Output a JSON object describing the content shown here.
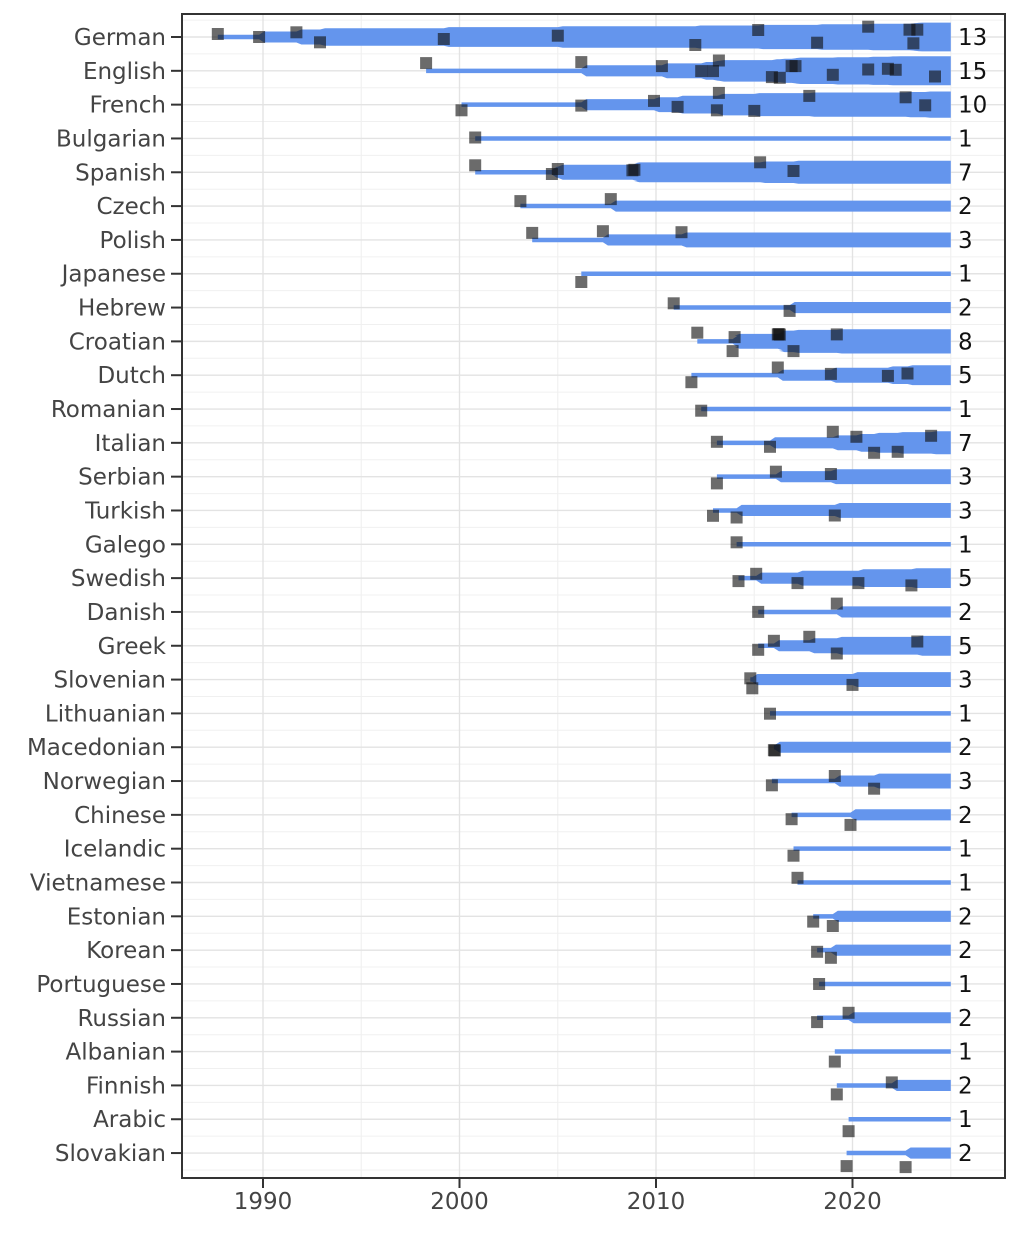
{
  "chart_data": {
    "type": "area",
    "variant": "timeline-stream-with-event-markers",
    "description": "Horizontal timeline per language: stream starts at first event year, widens stepwise at each event (dark square markers, vertically jittered), runs to 2025; total event count labeled at right.",
    "x_axis": {
      "tick_labels": [
        "1990",
        "2000",
        "2010",
        "2020"
      ],
      "major_ticks": [
        1990,
        2000,
        2010,
        2020
      ],
      "minor_gridlines": [
        1995,
        2005,
        2015,
        2025
      ],
      "range": [
        1985.9,
        2027.8
      ],
      "bar_end_year": 2025,
      "grid": true
    },
    "y_axis": {
      "categories": [
        "German",
        "English",
        "French",
        "Bulgarian",
        "Spanish",
        "Czech",
        "Polish",
        "Japanese",
        "Hebrew",
        "Croatian",
        "Dutch",
        "Romanian",
        "Italian",
        "Serbian",
        "Turkish",
        "Galego",
        "Swedish",
        "Danish",
        "Greek",
        "Slovenian",
        "Lithuanian",
        "Macedonian",
        "Norwegian",
        "Chinese",
        "Icelandic",
        "Vietnamese",
        "Estonian",
        "Korean",
        "Portuguese",
        "Russian",
        "Albanian",
        "Finnish",
        "Arabic",
        "Slovakian"
      ]
    },
    "counts": [
      13,
      15,
      10,
      1,
      7,
      2,
      3,
      1,
      2,
      8,
      5,
      1,
      7,
      3,
      3,
      1,
      5,
      2,
      5,
      3,
      1,
      2,
      3,
      2,
      1,
      1,
      2,
      2,
      1,
      2,
      1,
      2,
      1,
      2
    ],
    "legend": "none",
    "series": [
      {
        "language": "German",
        "count": 13,
        "events": [
          {
            "year": 1987.7,
            "dy": -3
          },
          {
            "year": 1989.8,
            "dy": 0
          },
          {
            "year": 1991.7,
            "dy": -4.7
          },
          {
            "year": 1992.9,
            "dy": 5.3
          },
          {
            "year": 1999.2,
            "dy": 2
          },
          {
            "year": 2005.0,
            "dy": -1.3
          },
          {
            "year": 2012.0,
            "dy": 8
          },
          {
            "year": 2015.2,
            "dy": -7
          },
          {
            "year": 2018.2,
            "dy": 5.7
          },
          {
            "year": 2020.8,
            "dy": -10.3
          },
          {
            "year": 2022.9,
            "dy": -7.3
          },
          {
            "year": 2023.1,
            "dy": 6.3
          },
          {
            "year": 2023.3,
            "dy": -7.3
          }
        ]
      },
      {
        "language": "English",
        "count": 15,
        "events": [
          {
            "year": 1998.3,
            "dy": -7.7
          },
          {
            "year": 2006.2,
            "dy": -8.7
          },
          {
            "year": 2010.3,
            "dy": -4.7
          },
          {
            "year": 2012.3,
            "dy": 0.3
          },
          {
            "year": 2012.9,
            "dy": 0.3
          },
          {
            "year": 2013.2,
            "dy": -10.3
          },
          {
            "year": 2015.9,
            "dy": 6.3
          },
          {
            "year": 2016.3,
            "dy": 7
          },
          {
            "year": 2016.9,
            "dy": -4.7
          },
          {
            "year": 2017.1,
            "dy": -4.7
          },
          {
            "year": 2019.0,
            "dy": 4
          },
          {
            "year": 2020.8,
            "dy": -1.3
          },
          {
            "year": 2021.8,
            "dy": -2
          },
          {
            "year": 2022.2,
            "dy": -1
          },
          {
            "year": 2024.2,
            "dy": 5.7
          }
        ]
      },
      {
        "language": "French",
        "count": 10,
        "events": [
          {
            "year": 2000.1,
            "dy": 5.7
          },
          {
            "year": 2006.2,
            "dy": 1
          },
          {
            "year": 2009.9,
            "dy": -3.7
          },
          {
            "year": 2011.1,
            "dy": 2.3
          },
          {
            "year": 2013.1,
            "dy": 5.7
          },
          {
            "year": 2013.2,
            "dy": -11.7
          },
          {
            "year": 2015.0,
            "dy": 6.3
          },
          {
            "year": 2017.8,
            "dy": -8.7
          },
          {
            "year": 2022.7,
            "dy": -7.3
          },
          {
            "year": 2023.7,
            "dy": 0.7
          }
        ]
      },
      {
        "language": "Bulgarian",
        "count": 1,
        "events": [
          {
            "year": 2000.8,
            "dy": -1
          }
        ]
      },
      {
        "language": "Spanish",
        "count": 7,
        "events": [
          {
            "year": 2000.8,
            "dy": -7
          },
          {
            "year": 2004.7,
            "dy": 1.7
          },
          {
            "year": 2005.0,
            "dy": -3.3
          },
          {
            "year": 2008.8,
            "dy": -2
          },
          {
            "year": 2008.9,
            "dy": -2.5
          },
          {
            "year": 2015.3,
            "dy": -10
          },
          {
            "year": 2017.0,
            "dy": -1.3
          }
        ]
      },
      {
        "language": "Czech",
        "count": 2,
        "events": [
          {
            "year": 2003.1,
            "dy": -5
          },
          {
            "year": 2007.7,
            "dy": -7
          }
        ]
      },
      {
        "language": "Polish",
        "count": 3,
        "events": [
          {
            "year": 2003.7,
            "dy": -7
          },
          {
            "year": 2007.3,
            "dy": -8.7
          },
          {
            "year": 2011.3,
            "dy": -7.7
          }
        ]
      },
      {
        "language": "Japanese",
        "count": 1,
        "events": [
          {
            "year": 2006.2,
            "dy": 8.3
          }
        ]
      },
      {
        "language": "Hebrew",
        "count": 2,
        "events": [
          {
            "year": 2010.9,
            "dy": -4.3
          },
          {
            "year": 2016.8,
            "dy": 3.3
          }
        ]
      },
      {
        "language": "Croatian",
        "count": 8,
        "events": [
          {
            "year": 2012.1,
            "dy": -8.7
          },
          {
            "year": 2013.9,
            "dy": 9.7
          },
          {
            "year": 2014.0,
            "dy": -4.3
          },
          {
            "year": 2016.2,
            "dy": -7
          },
          {
            "year": 2016.25,
            "dy": -7.3
          },
          {
            "year": 2016.3,
            "dy": -6.8
          },
          {
            "year": 2017.0,
            "dy": 9.7
          },
          {
            "year": 2019.2,
            "dy": -7
          }
        ]
      },
      {
        "language": "Dutch",
        "count": 5,
        "events": [
          {
            "year": 2011.8,
            "dy": 7
          },
          {
            "year": 2016.2,
            "dy": -7.7
          },
          {
            "year": 2018.9,
            "dy": -1.3
          },
          {
            "year": 2021.8,
            "dy": 0.7
          },
          {
            "year": 2022.8,
            "dy": -1.7
          }
        ]
      },
      {
        "language": "Romanian",
        "count": 1,
        "events": [
          {
            "year": 2012.3,
            "dy": 1.7
          }
        ]
      },
      {
        "language": "Italian",
        "count": 7,
        "events": [
          {
            "year": 2013.1,
            "dy": -1
          },
          {
            "year": 2015.8,
            "dy": 4
          },
          {
            "year": 2019.0,
            "dy": -11
          },
          {
            "year": 2020.2,
            "dy": -6
          },
          {
            "year": 2021.1,
            "dy": 10
          },
          {
            "year": 2022.3,
            "dy": 9
          },
          {
            "year": 2024.0,
            "dy": -7
          }
        ]
      },
      {
        "language": "Serbian",
        "count": 3,
        "events": [
          {
            "year": 2013.1,
            "dy": 6.7
          },
          {
            "year": 2016.1,
            "dy": -5
          },
          {
            "year": 2018.9,
            "dy": -2.7
          }
        ]
      },
      {
        "language": "Turkish",
        "count": 3,
        "events": [
          {
            "year": 2012.9,
            "dy": 5.3
          },
          {
            "year": 2014.1,
            "dy": 7
          },
          {
            "year": 2019.1,
            "dy": 5
          }
        ]
      },
      {
        "language": "Galego",
        "count": 1,
        "events": [
          {
            "year": 2014.1,
            "dy": -2
          }
        ]
      },
      {
        "language": "Swedish",
        "count": 5,
        "events": [
          {
            "year": 2014.2,
            "dy": 3
          },
          {
            "year": 2015.1,
            "dy": -4.3
          },
          {
            "year": 2017.2,
            "dy": 5
          },
          {
            "year": 2020.3,
            "dy": 5
          },
          {
            "year": 2023.0,
            "dy": 7.3
          }
        ]
      },
      {
        "language": "Danish",
        "count": 2,
        "events": [
          {
            "year": 2015.2,
            "dy": 0
          },
          {
            "year": 2019.2,
            "dy": -8.3
          }
        ]
      },
      {
        "language": "Greek",
        "count": 5,
        "events": [
          {
            "year": 2015.2,
            "dy": 4
          },
          {
            "year": 2016.0,
            "dy": -5
          },
          {
            "year": 2017.8,
            "dy": -9
          },
          {
            "year": 2019.2,
            "dy": 7.7
          },
          {
            "year": 2023.3,
            "dy": -4.3
          }
        ]
      },
      {
        "language": "Slovenian",
        "count": 3,
        "events": [
          {
            "year": 2014.8,
            "dy": -1.3
          },
          {
            "year": 2014.9,
            "dy": 8.7
          },
          {
            "year": 2020.0,
            "dy": 5.3
          }
        ]
      },
      {
        "language": "Lithuanian",
        "count": 1,
        "events": [
          {
            "year": 2015.8,
            "dy": 0.3
          }
        ]
      },
      {
        "language": "Macedonian",
        "count": 2,
        "events": [
          {
            "year": 2016.0,
            "dy": 3
          },
          {
            "year": 2016.05,
            "dy": 3.2
          }
        ]
      },
      {
        "language": "Norwegian",
        "count": 3,
        "events": [
          {
            "year": 2015.9,
            "dy": 4.3
          },
          {
            "year": 2019.1,
            "dy": -5
          },
          {
            "year": 2021.1,
            "dy": 7.7
          }
        ]
      },
      {
        "language": "Chinese",
        "count": 2,
        "events": [
          {
            "year": 2016.9,
            "dy": 4.3
          },
          {
            "year": 2019.9,
            "dy": 10
          }
        ]
      },
      {
        "language": "Icelandic",
        "count": 1,
        "events": [
          {
            "year": 2017.0,
            "dy": 7
          }
        ]
      },
      {
        "language": "Vietnamese",
        "count": 1,
        "events": [
          {
            "year": 2017.2,
            "dy": -4.7
          }
        ]
      },
      {
        "language": "Estonian",
        "count": 2,
        "events": [
          {
            "year": 2018.0,
            "dy": 5.3
          },
          {
            "year": 2019.0,
            "dy": 9.7
          }
        ]
      },
      {
        "language": "Korean",
        "count": 2,
        "events": [
          {
            "year": 2018.2,
            "dy": 1.7
          },
          {
            "year": 2018.9,
            "dy": 7.7
          }
        ]
      },
      {
        "language": "Portuguese",
        "count": 1,
        "events": [
          {
            "year": 2018.3,
            "dy": 0
          }
        ]
      },
      {
        "language": "Russian",
        "count": 2,
        "events": [
          {
            "year": 2018.2,
            "dy": 4.3
          },
          {
            "year": 2019.8,
            "dy": -5
          }
        ]
      },
      {
        "language": "Albanian",
        "count": 1,
        "events": [
          {
            "year": 2019.1,
            "dy": 10
          }
        ]
      },
      {
        "language": "Finnish",
        "count": 2,
        "events": [
          {
            "year": 2019.2,
            "dy": 9
          },
          {
            "year": 2022.0,
            "dy": -3
          }
        ]
      },
      {
        "language": "Arabic",
        "count": 1,
        "events": [
          {
            "year": 2019.8,
            "dy": 12
          }
        ]
      },
      {
        "language": "Slovakian",
        "count": 2,
        "events": [
          {
            "year": 2019.7,
            "dy": 13
          },
          {
            "year": 2022.7,
            "dy": 14
          }
        ]
      }
    ],
    "colors": {
      "bar": "#6495ed",
      "marker": "#101010",
      "marker_opacity": 0.62,
      "grid_major": "#e3e3e3",
      "grid_minor": "#f0f0f0",
      "axis_text": "#444444",
      "count_text": "#111111",
      "border": "#333333",
      "background": "#ffffff"
    }
  }
}
